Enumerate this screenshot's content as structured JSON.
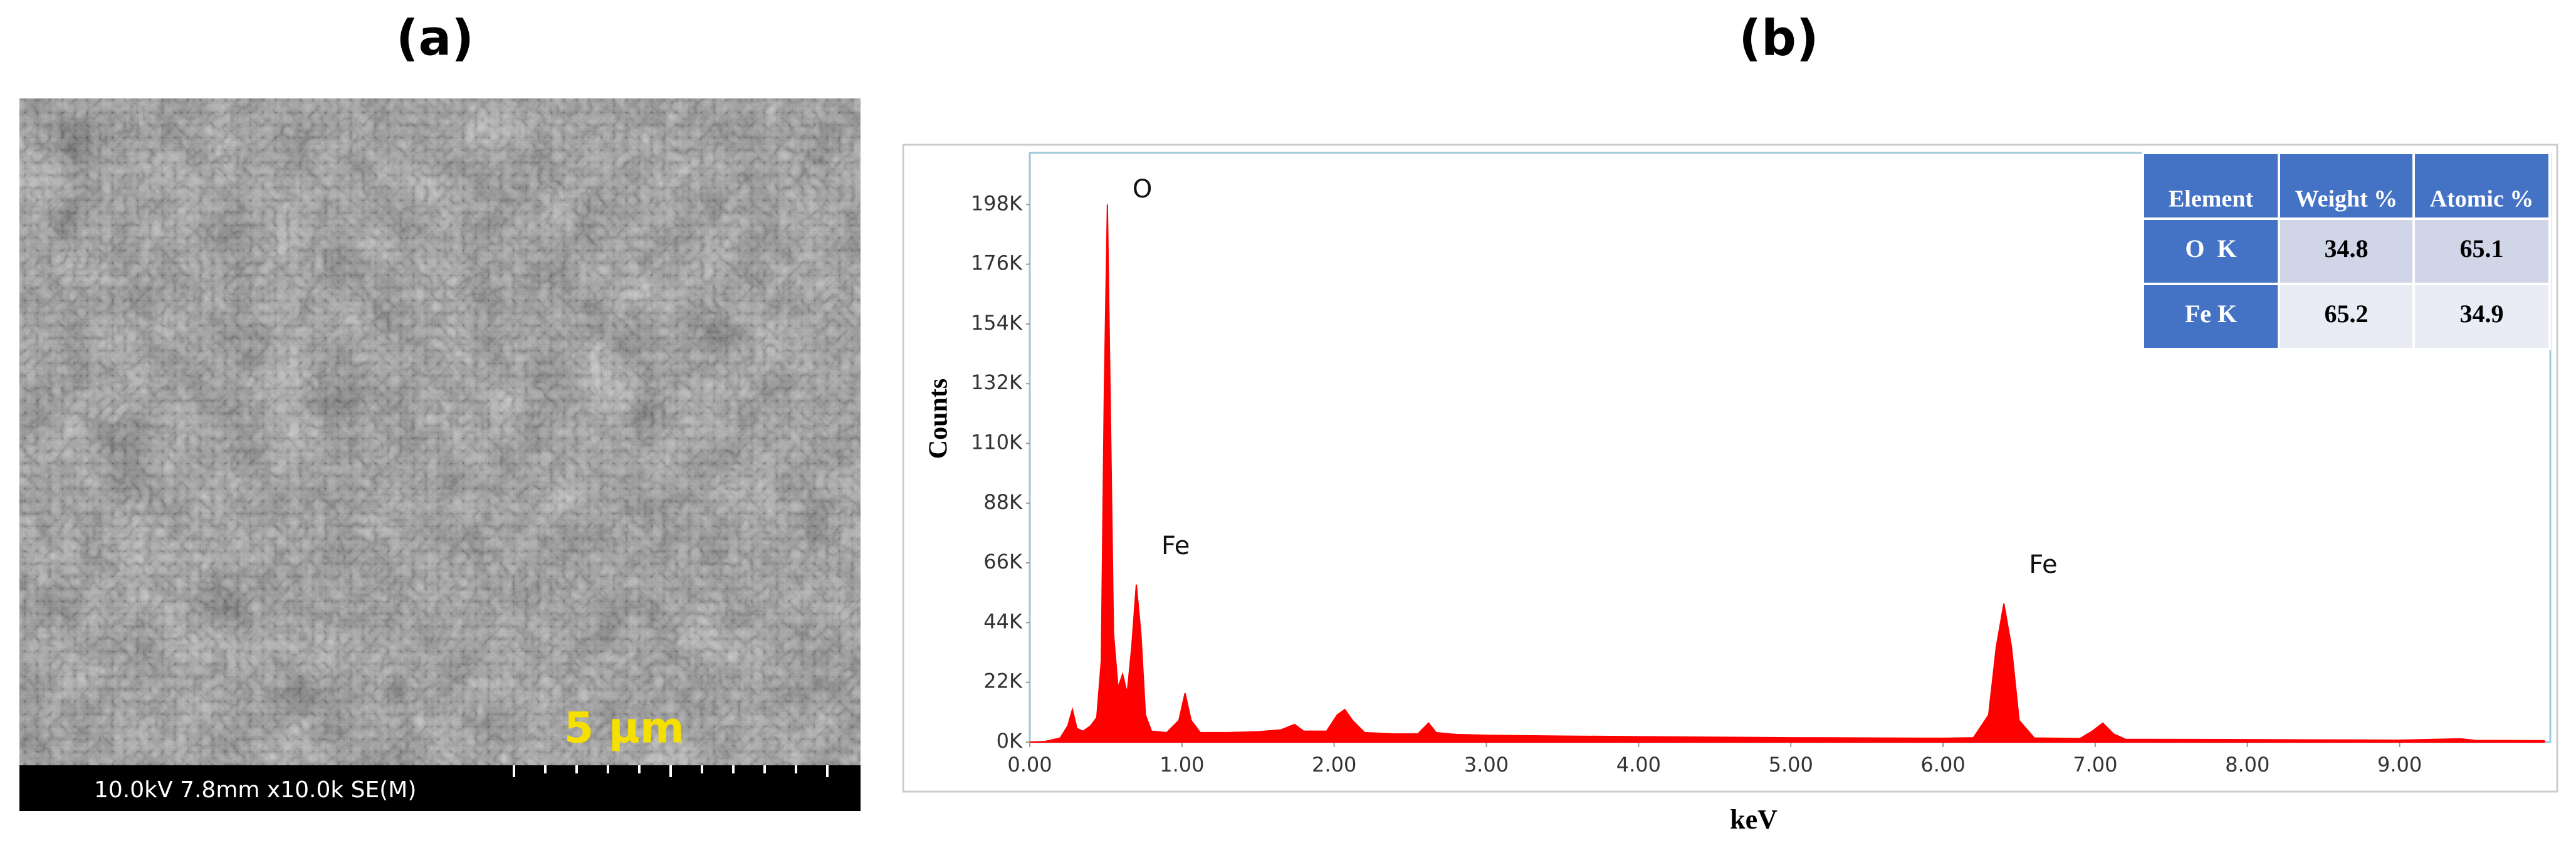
{
  "panel_labels": [
    "(a)",
    "(b)"
  ],
  "sem_image": {
    "caption": "10.0kV 7.8mm x10.0k SE(M)",
    "scale_bar": "5 µm"
  },
  "chart_data": {
    "type": "area",
    "x_label": "keV",
    "y_label": "Counts",
    "color": "#ff0000",
    "x": [
      0.0,
      0.1,
      0.2,
      0.25,
      0.28,
      0.31,
      0.35,
      0.4,
      0.44,
      0.47,
      0.49,
      0.51,
      0.53,
      0.55,
      0.58,
      0.61,
      0.64,
      0.67,
      0.7,
      0.73,
      0.76,
      0.8,
      0.9,
      0.98,
      1.02,
      1.06,
      1.12,
      1.3,
      1.5,
      1.65,
      1.74,
      1.8,
      1.95,
      2.02,
      2.07,
      2.12,
      2.2,
      2.4,
      2.55,
      2.62,
      2.67,
      2.8,
      3.0,
      3.5,
      4.0,
      4.5,
      5.0,
      5.5,
      6.0,
      6.2,
      6.3,
      6.35,
      6.4,
      6.45,
      6.5,
      6.6,
      6.9,
      6.98,
      7.05,
      7.12,
      7.2,
      8.0,
      9.0,
      9.4,
      9.5,
      9.95
    ],
    "values": [
      0,
      200,
      1500,
      6000,
      12000,
      5000,
      4000,
      6000,
      9000,
      30000,
      130000,
      198000,
      120000,
      40000,
      20000,
      25000,
      18000,
      35000,
      58000,
      40000,
      10000,
      4000,
      3500,
      8000,
      18000,
      8000,
      3500,
      3500,
      3800,
      4500,
      6500,
      4000,
      4000,
      10000,
      12000,
      8000,
      3500,
      3000,
      3000,
      7000,
      3500,
      2800,
      2500,
      2200,
      2000,
      1800,
      1600,
      1500,
      1400,
      1600,
      10000,
      35000,
      51000,
      35000,
      8000,
      1500,
      1300,
      4000,
      7000,
      3000,
      1000,
      900,
      700,
      1200,
      600,
      500
    ],
    "xlim": [
      0,
      9.99
    ],
    "ylim": [
      0,
      217000
    ],
    "xticks": [
      {
        "value": 0,
        "label": "0.00"
      },
      {
        "value": 1,
        "label": "1.00"
      },
      {
        "value": 2,
        "label": "2.00"
      },
      {
        "value": 3,
        "label": "3.00"
      },
      {
        "value": 4,
        "label": "4.00"
      },
      {
        "value": 5,
        "label": "5.00"
      },
      {
        "value": 6,
        "label": "6.00"
      },
      {
        "value": 7,
        "label": "7.00"
      },
      {
        "value": 8,
        "label": "8.00"
      },
      {
        "value": 9,
        "label": "9.00"
      }
    ],
    "yticks": [
      {
        "value": 0,
        "label": "0K"
      },
      {
        "value": 22000,
        "label": "22K"
      },
      {
        "value": 44000,
        "label": "44K"
      },
      {
        "value": 66000,
        "label": "66K"
      },
      {
        "value": 88000,
        "label": "88K"
      },
      {
        "value": 110000,
        "label": "110K"
      },
      {
        "value": 132000,
        "label": "132K"
      },
      {
        "value": 154000,
        "label": "154K"
      },
      {
        "value": 176000,
        "label": "176K"
      },
      {
        "value": 198000,
        "label": "198K"
      }
    ],
    "annotations": [
      {
        "text": "O",
        "x": 0.51
      },
      {
        "text": "Fe",
        "x": 0.7
      },
      {
        "text": "Fe",
        "x": 6.4
      }
    ],
    "table": {
      "header": [
        "Element",
        "Weight %",
        "Atomic %"
      ],
      "rows": [
        [
          "O  K",
          34.8,
          65.1
        ],
        [
          "Fe K",
          65.2,
          34.9
        ]
      ]
    }
  }
}
